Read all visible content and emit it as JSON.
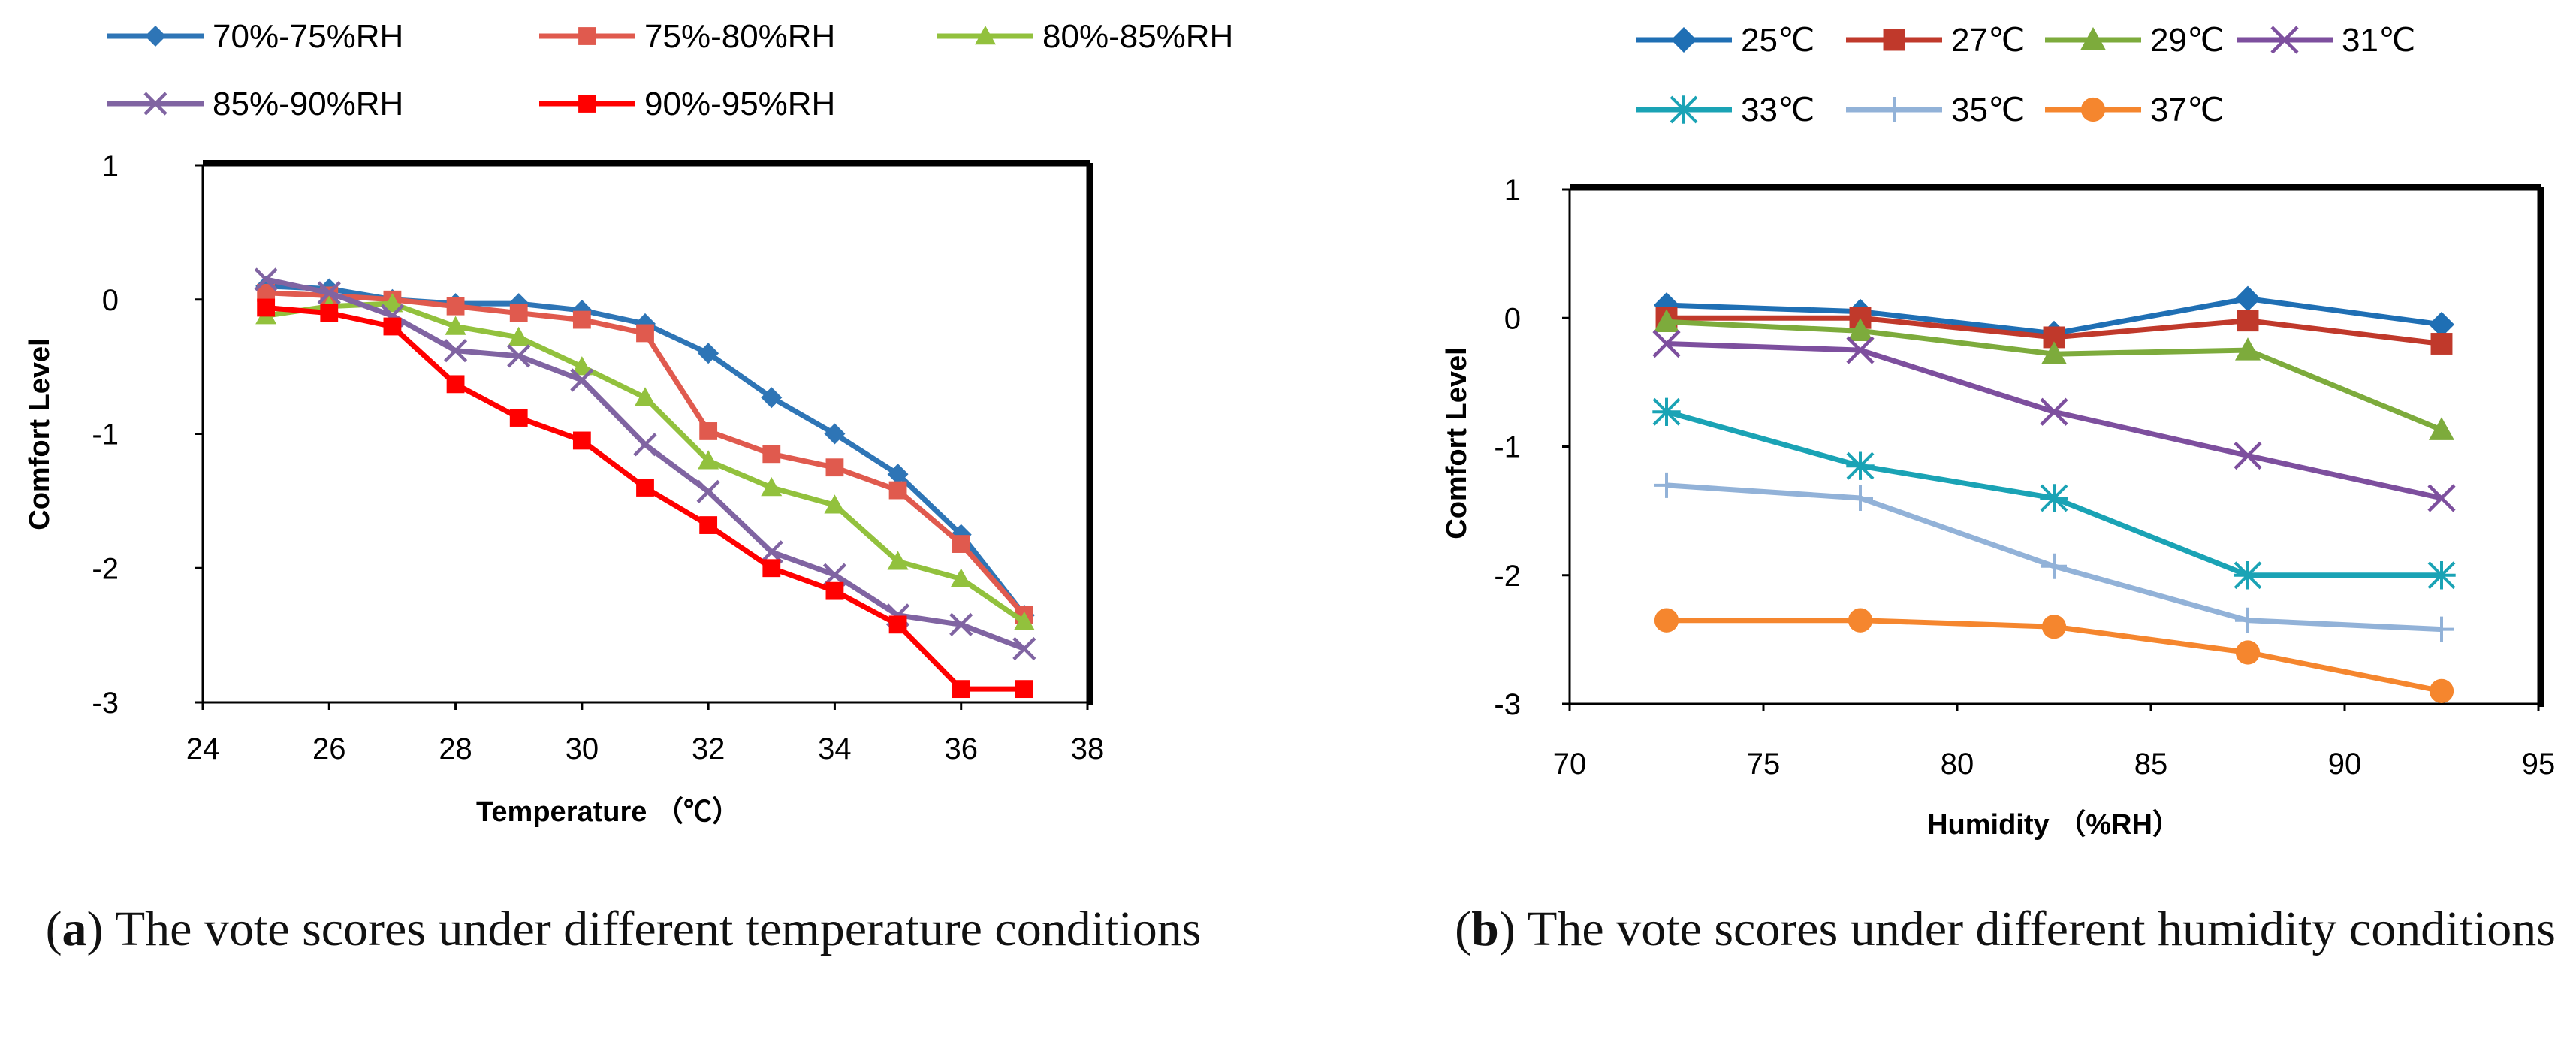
{
  "chart_data": [
    {
      "type": "line",
      "title": "",
      "xlabel": "Temperature （℃）",
      "ylabel": "Comfort Level",
      "xlim": [
        24,
        38
      ],
      "ylim": [
        -3,
        1
      ],
      "xticks": [
        24,
        26,
        28,
        30,
        32,
        34,
        36,
        38
      ],
      "yticks": [
        1,
        0,
        -1,
        -2,
        -3
      ],
      "grid": false,
      "legend_position": "top",
      "x": [
        25,
        26,
        27,
        28,
        29,
        30,
        31,
        32,
        33,
        34,
        35,
        36,
        37
      ],
      "series": [
        {
          "name": "70%-75%RH",
          "color": "#2e75b6",
          "marker": "diamond",
          "values": [
            0.1,
            0.08,
            0.0,
            -0.03,
            -0.03,
            -0.08,
            -0.18,
            -0.4,
            -0.73,
            -1.0,
            -1.3,
            -1.75,
            -2.35
          ]
        },
        {
          "name": "75%-80%RH",
          "color": "#e05a4e",
          "marker": "square",
          "values": [
            0.05,
            0.03,
            0.0,
            -0.05,
            -0.1,
            -0.15,
            -0.25,
            -0.98,
            -1.15,
            -1.25,
            -1.42,
            -1.82,
            -2.35
          ]
        },
        {
          "name": "80%-85%RH",
          "color": "#92c13d",
          "marker": "triangle",
          "values": [
            -0.12,
            -0.05,
            -0.03,
            -0.2,
            -0.28,
            -0.5,
            -0.73,
            -1.2,
            -1.4,
            -1.53,
            -1.95,
            -2.08,
            -2.4
          ]
        },
        {
          "name": "85%-90%RH",
          "color": "#8064a2",
          "marker": "x",
          "values": [
            0.15,
            0.05,
            -0.12,
            -0.38,
            -0.42,
            -0.6,
            -1.08,
            -1.43,
            -1.88,
            -2.05,
            -2.35,
            -2.42,
            -2.6
          ]
        },
        {
          "name": "90%-95%RH",
          "color": "#ff0000",
          "marker": "square",
          "values": [
            -0.06,
            -0.1,
            -0.2,
            -0.63,
            -0.88,
            -1.05,
            -1.4,
            -1.68,
            -2.0,
            -2.17,
            -2.42,
            -2.9,
            -2.9
          ]
        }
      ]
    },
    {
      "type": "line",
      "title": "",
      "xlabel": "Humidity （%RH）",
      "ylabel": "Comfort Level",
      "xlim": [
        70,
        95
      ],
      "ylim": [
        -3,
        1
      ],
      "xticks": [
        70,
        75,
        80,
        85,
        90,
        95
      ],
      "yticks": [
        1,
        0,
        -1,
        -2,
        -3
      ],
      "grid": false,
      "legend_position": "top",
      "x": [
        72.5,
        77.5,
        82.5,
        87.5,
        92.5
      ],
      "series": [
        {
          "name": "25℃",
          "color": "#1f6fb4",
          "marker": "diamond",
          "values": [
            0.1,
            0.05,
            -0.12,
            0.15,
            -0.05
          ]
        },
        {
          "name": "27℃",
          "color": "#c0392b",
          "marker": "square",
          "values": [
            0.0,
            0.0,
            -0.15,
            -0.02,
            -0.2
          ]
        },
        {
          "name": "29℃",
          "color": "#7dab3c",
          "marker": "triangle",
          "values": [
            -0.03,
            -0.1,
            -0.28,
            -0.25,
            -0.87
          ]
        },
        {
          "name": "31℃",
          "color": "#7d4f9e",
          "marker": "x",
          "values": [
            -0.2,
            -0.25,
            -0.73,
            -1.07,
            -1.4
          ]
        },
        {
          "name": "33℃",
          "color": "#1aa3b5",
          "marker": "star",
          "values": [
            -0.73,
            -1.15,
            -1.4,
            -2.0,
            -2.0
          ]
        },
        {
          "name": "35℃",
          "color": "#92b2d8",
          "marker": "plus",
          "values": [
            -1.3,
            -1.4,
            -1.93,
            -2.35,
            -2.42
          ]
        },
        {
          "name": "37℃",
          "color": "#f5862e",
          "marker": "circle",
          "values": [
            -2.35,
            -2.35,
            -2.4,
            -2.6,
            -2.9
          ]
        }
      ]
    }
  ],
  "captions": [
    {
      "label": "a",
      "text": ") The vote scores under different temperature conditions"
    },
    {
      "label": "b",
      "text": ") The vote scores under different humidity conditions"
    }
  ]
}
